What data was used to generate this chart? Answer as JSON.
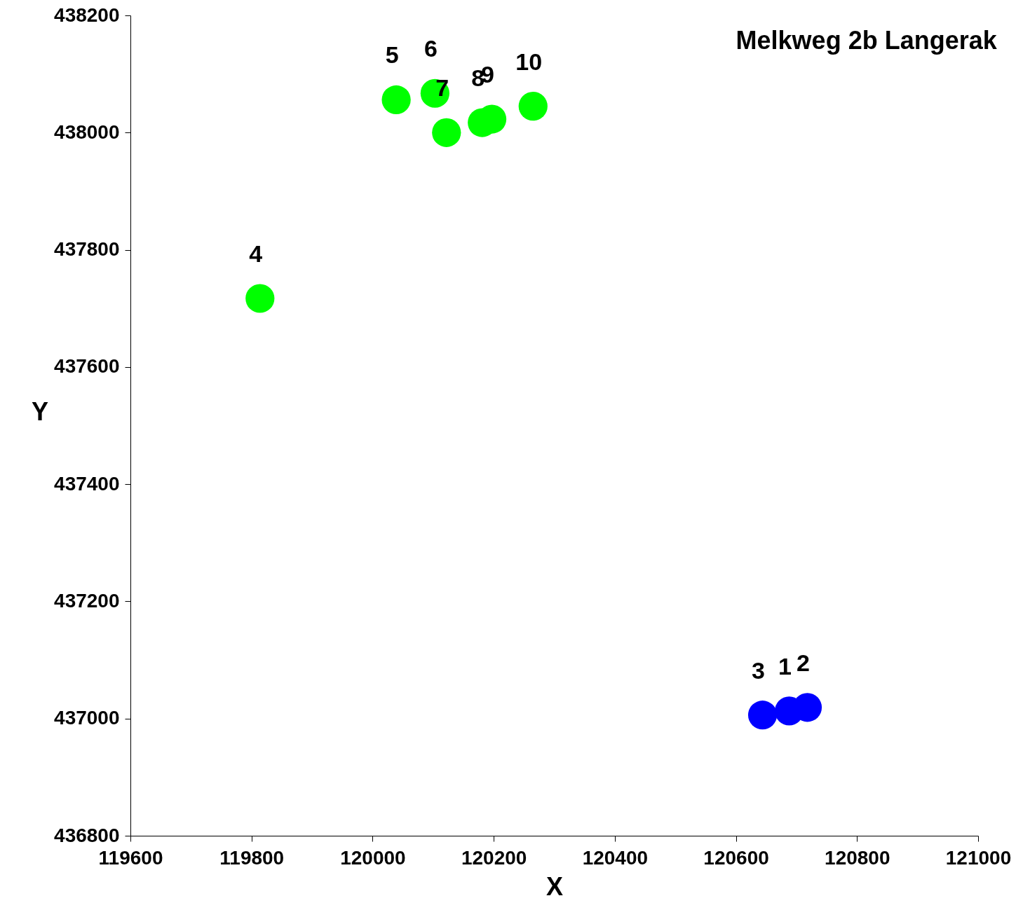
{
  "chart_data": {
    "type": "scatter",
    "title": "Melkweg 2b Langerak",
    "xlabel": "X",
    "ylabel": "Y",
    "xlim": [
      119600,
      121000
    ],
    "xticks": [
      119600,
      119800,
      120000,
      120200,
      120400,
      120600,
      120800,
      121000
    ],
    "ylim": [
      436800,
      438200
    ],
    "yticks": [
      436800,
      437000,
      437200,
      437400,
      437600,
      437800,
      438000,
      438200
    ],
    "grid": false,
    "legend": false,
    "marker": "circle",
    "series": [
      {
        "color": "#00ff00",
        "x": [
          119814,
          120039,
          120103,
          120122,
          120181,
          120197,
          120265
        ],
        "values": [
          437717,
          438056,
          438067,
          438000,
          438017,
          438023,
          438045
        ]
      },
      {
        "color": "#0000ff",
        "x": [
          120688,
          120718,
          120644
        ],
        "values": [
          437013,
          437019,
          437006
        ]
      }
    ],
    "annotations": [
      {
        "text": "1",
        "x": 120688,
        "y": 437013
      },
      {
        "text": "2",
        "x": 120718,
        "y": 437019
      },
      {
        "text": "3",
        "x": 120644,
        "y": 437006
      },
      {
        "text": "4",
        "x": 119814,
        "y": 437717
      },
      {
        "text": "5",
        "x": 120039,
        "y": 438056
      },
      {
        "text": "6",
        "x": 120103,
        "y": 438067
      },
      {
        "text": "7",
        "x": 120122,
        "y": 438000
      },
      {
        "text": "8",
        "x": 120181,
        "y": 438017
      },
      {
        "text": "9",
        "x": 120197,
        "y": 438023
      },
      {
        "text": "10",
        "x": 120265,
        "y": 438045
      }
    ]
  }
}
